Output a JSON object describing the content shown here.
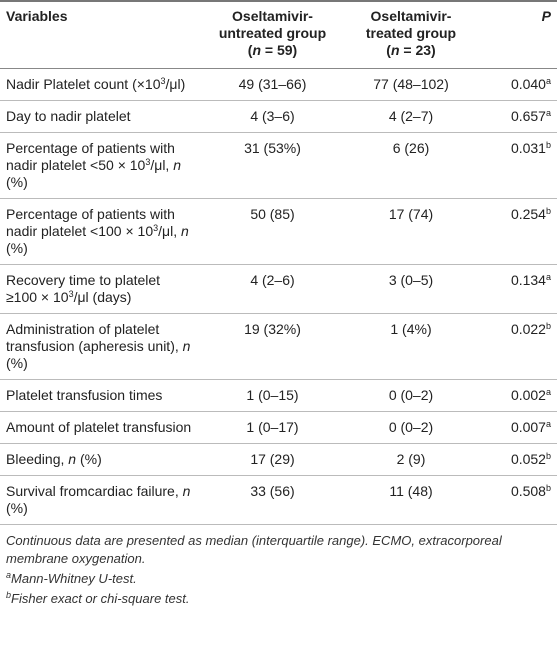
{
  "table": {
    "header": {
      "variables": [
        "Variables"
      ],
      "untreated": [
        "Oseltamivir-untreated group",
        "(",
        {
          "italic": "n"
        },
        " = 59)"
      ],
      "treated": [
        "Oseltamivir-treated group",
        "(",
        {
          "italic": "n"
        },
        " = 23)"
      ],
      "p": [
        {
          "italic": "P"
        }
      ]
    },
    "rows": [
      {
        "variable": [
          "Nadir Platelet count (×10",
          {
            "sup": "3"
          },
          "/μl)"
        ],
        "untreated": "49 (31–66)",
        "treated": "77 (48–102)",
        "p": "0.040",
        "p_note": "a"
      },
      {
        "variable": [
          "Day to nadir platelet"
        ],
        "untreated": "4 (3–6)",
        "treated": "4 (2–7)",
        "p": "0.657",
        "p_note": "a"
      },
      {
        "variable": [
          "Percentage of patients with nadir platelet <50 × 10",
          {
            "sup": "3"
          },
          "/μl, ",
          {
            "italic": "n"
          },
          " (%)"
        ],
        "untreated": "31 (53%)",
        "treated": "6 (26)",
        "p": "0.031",
        "p_note": "b"
      },
      {
        "variable": [
          "Percentage of patients with nadir platelet <100 × 10",
          {
            "sup": "3"
          },
          "/μl, ",
          {
            "italic": "n"
          },
          " (%)"
        ],
        "untreated": "50 (85)",
        "treated": "17 (74)",
        "p": "0.254",
        "p_note": "b"
      },
      {
        "variable": [
          "Recovery time to platelet ≥100 × 10",
          {
            "sup": "3"
          },
          "/μl (days)"
        ],
        "untreated": "4 (2–6)",
        "treated": "3 (0–5)",
        "p": "0.134",
        "p_note": "a"
      },
      {
        "variable": [
          "Administration of platelet transfusion (apheresis unit), ",
          {
            "italic": "n"
          },
          " (%)"
        ],
        "untreated": "19 (32%)",
        "treated": "1 (4%)",
        "p": "0.022",
        "p_note": "b"
      },
      {
        "variable": [
          "Platelet transfusion times"
        ],
        "untreated": "1 (0–15)",
        "treated": "0 (0–2)",
        "p": "0.002",
        "p_note": "a"
      },
      {
        "variable": [
          "Amount of platelet transfusion"
        ],
        "untreated": "1 (0–17)",
        "treated": "0 (0–2)",
        "p": "0.007",
        "p_note": "a"
      },
      {
        "variable": [
          "Bleeding, ",
          {
            "italic": "n"
          },
          " (%)"
        ],
        "untreated": "17 (29)",
        "treated": "2 (9)",
        "p": "0.052",
        "p_note": "b"
      },
      {
        "variable": [
          "Survival fromcardiac failure, ",
          {
            "italic": "n"
          },
          " (%)"
        ],
        "untreated": "33 (56)",
        "treated": "11 (48)",
        "p": "0.508",
        "p_note": "b"
      }
    ]
  },
  "footnotes": [
    [
      "Continuous data are presented as median (interquartile range). ECMO, extracorporeal membrane oxygenation."
    ],
    [
      {
        "sup": "a"
      },
      "Mann-Whitney U-test."
    ],
    [
      {
        "sup": "b"
      },
      "Fisher exact or chi-square test."
    ]
  ]
}
